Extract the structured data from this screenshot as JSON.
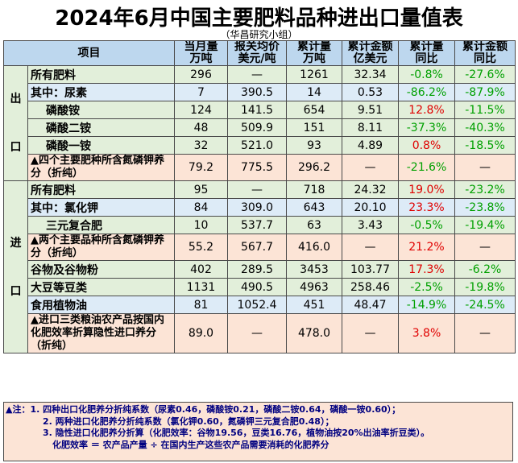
{
  "title": "2024年6月中国主要肥料品种进出口量值表",
  "subtitle": "（华昌研究小组）",
  "headers": {
    "item": "项目",
    "monthly": [
      "当月量",
      "万吨"
    ],
    "avg_price": [
      "报关均价",
      "美元/吨"
    ],
    "cum_qty": [
      "累计量",
      "万吨"
    ],
    "cum_amt": [
      "累计金额",
      "亿美元"
    ],
    "cum_qty_yoy": [
      "累计量",
      "同比"
    ],
    "cum_amt_yoy": [
      "累计金额",
      "同比"
    ]
  },
  "export_label": [
    "出",
    "口"
  ],
  "import_label": [
    "进",
    "口"
  ],
  "export_rows": [
    {
      "item": "所有肥料",
      "monthly": "296",
      "price": "—",
      "cum_qty": "1261",
      "cum_amt": "32.34",
      "qty_yoy": "-0.8%",
      "amt_yoy": "-27.6%"
    },
    {
      "item": "其中：尿素",
      "monthly": "7",
      "price": "390.5",
      "cum_qty": "14",
      "cum_amt": "0.53",
      "qty_yoy": "-86.2%",
      "amt_yoy": "-87.9%"
    },
    {
      "item": "磷酸铵",
      "monthly": "124",
      "price": "141.5",
      "cum_qty": "654",
      "cum_amt": "9.51",
      "qty_yoy": "12.8%",
      "amt_yoy": "-11.5%"
    },
    {
      "item": "磷酸二铵",
      "monthly": "48",
      "price": "509.9",
      "cum_qty": "151",
      "cum_amt": "8.11",
      "qty_yoy": "-37.3%",
      "amt_yoy": "-40.3%"
    },
    {
      "item": "磷酸一铵",
      "monthly": "32",
      "price": "521.0",
      "cum_qty": "93",
      "cum_amt": "4.89",
      "qty_yoy": "0.8%",
      "amt_yoy": "-18.5%"
    },
    {
      "item": "▲四个主要肥种所含氮磷钾养分（折纯）",
      "monthly": "79.2",
      "price": "775.5",
      "cum_qty": "296.2",
      "cum_amt": "—",
      "qty_yoy": "-21.6%",
      "amt_yoy": "—"
    }
  ],
  "import_rows": [
    {
      "item": "所有肥料",
      "monthly": "95",
      "price": "—",
      "cum_qty": "718",
      "cum_amt": "24.32",
      "qty_yoy": "19.0%",
      "amt_yoy": "-23.2%"
    },
    {
      "item": "其中：氯化钾",
      "monthly": "84",
      "price": "309.0",
      "cum_qty": "643",
      "cum_amt": "20.10",
      "qty_yoy": "23.3%",
      "amt_yoy": "-23.8%"
    },
    {
      "item": "三元复合肥",
      "monthly": "10",
      "price": "537.7",
      "cum_qty": "63",
      "cum_amt": "3.43",
      "qty_yoy": "-0.5%",
      "amt_yoy": "-19.4%"
    },
    {
      "item": "▲两个主要品种所含氮磷钾养分（折纯）",
      "monthly": "55.2",
      "price": "567.7",
      "cum_qty": "416.0",
      "cum_amt": "—",
      "qty_yoy": "21.2%",
      "amt_yoy": "—"
    },
    {
      "item": "谷物及谷物粉",
      "monthly": "402",
      "price": "289.5",
      "cum_qty": "3453",
      "cum_amt": "103.77",
      "qty_yoy": "17.3%",
      "amt_yoy": "-6.2%"
    },
    {
      "item": "大豆等豆类",
      "monthly": "1131",
      "price": "490.5",
      "cum_qty": "4963",
      "cum_amt": "258.46",
      "qty_yoy": "-2.5%",
      "amt_yoy": "-19.8%"
    },
    {
      "item": "食用植物油",
      "monthly": "81",
      "price": "1052.4",
      "cum_qty": "451",
      "cum_amt": "48.47",
      "qty_yoy": "-14.9%",
      "amt_yoy": "-24.5%"
    },
    {
      "item": "▲进口三类粮油农产品按国内化肥效率折算隐性进口养分（折纯）",
      "monthly": "89.0",
      "price": "—",
      "cum_qty": "478.0",
      "cum_amt": "—",
      "qty_yoy": "3.8%",
      "amt_yoy": "—"
    }
  ],
  "notes": [
    "▲注：1. 四种出口化肥养分折纯系数（尿素0.46，磷酸铵0.21，磷酸二铵0.64，磷酸一铵0.60）；",
    "2. 两种进口化肥养分折纯系数（氯化钾0.60，氮磷钾三元复合肥0.48）；",
    "3. 隐性进口化肥养分折算（化肥效率：谷物19.56，豆类16.76，植物油按20%出油率折豆类）。",
    "化肥效率 ＝ 农产品产量 ÷ 在国内生产这些农产品需要消耗的化肥养分"
  ],
  "colors": {
    "positive": "#e00000",
    "negative": "#00a000",
    "header_bg": "#bdd7ee",
    "green_bg": "#e2efda",
    "blue_bg": "#ddebf7",
    "orange_bg": "#fce4d6"
  }
}
